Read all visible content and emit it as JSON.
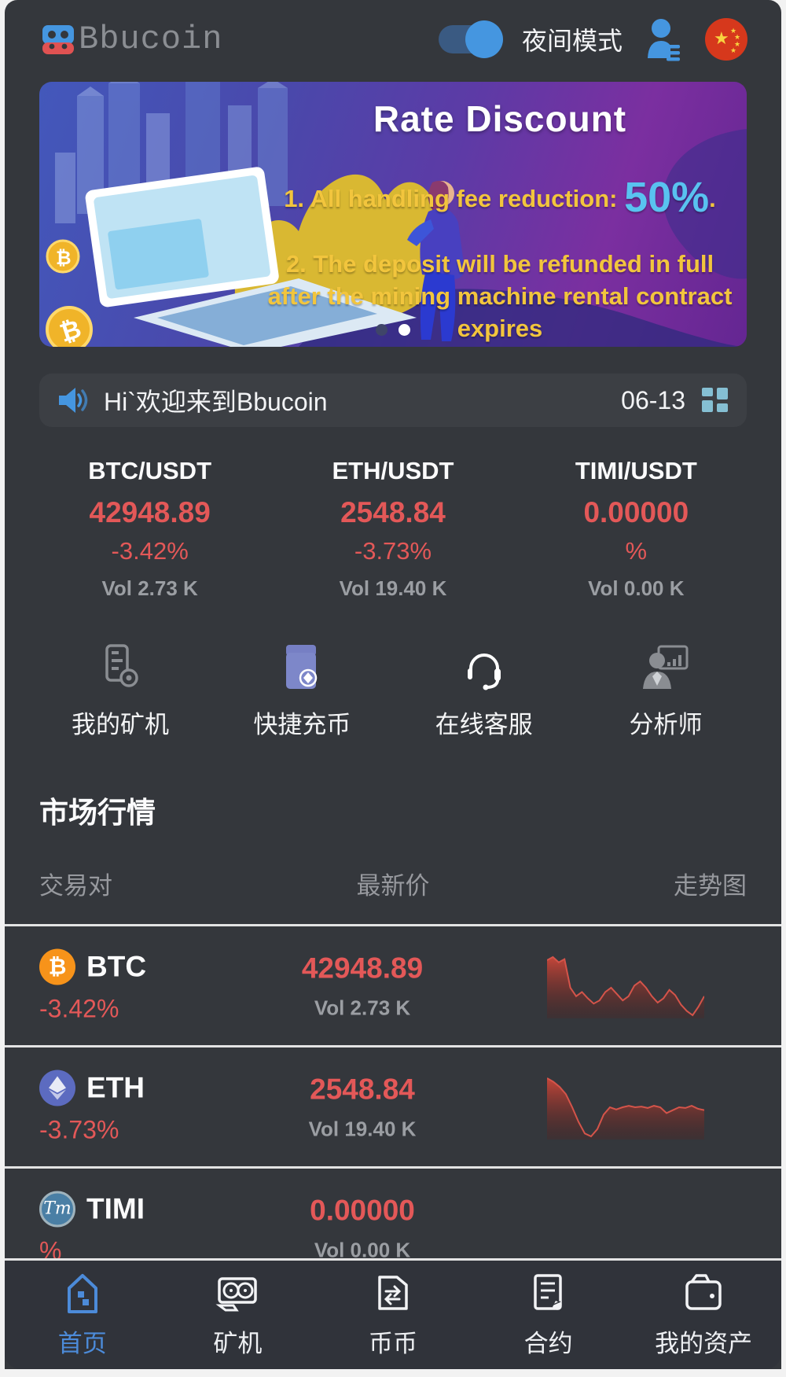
{
  "colors": {
    "accent_blue": "#4c8bd9",
    "toggle_blue": "#4596e0",
    "price_red": "#e35858",
    "muted_gray": "#9b9ea3",
    "banner_yellow": "#f2c53d",
    "banner_highlight_blue": "#59c2f0",
    "page_bg": "#34373c"
  },
  "header": {
    "logo_text": "Bbucoin",
    "night_mode_label": "夜间模式",
    "night_mode_on": true,
    "flag": "china-flag"
  },
  "banner": {
    "title": "Rate Discount",
    "line1_prefix": "1. All handling fee reduction: ",
    "line1_highlight": "50%",
    "line1_suffix": ".",
    "line2": "2. The deposit will be refunded in full after the mining machine rental contract expires",
    "dot_count": 2,
    "active_dot": 2
  },
  "notice": {
    "text": "Hi`欢迎来到Bbucoin",
    "date": "06-13"
  },
  "tickers": [
    {
      "pair": "BTC/USDT",
      "price": "42948.89",
      "change": "-3.42%",
      "vol": "Vol 2.73 K"
    },
    {
      "pair": "ETH/USDT",
      "price": "2548.84",
      "change": "-3.73%",
      "vol": "Vol 19.40 K"
    },
    {
      "pair": "TIMI/USDT",
      "price": "0.00000",
      "change": "%",
      "vol": "Vol 0.00 K"
    }
  ],
  "quick_actions": [
    {
      "label": "我的矿机",
      "icon": "mining-rig-icon"
    },
    {
      "label": "快捷充币",
      "icon": "wallet-deposit-icon"
    },
    {
      "label": "在线客服",
      "icon": "headset-icon"
    },
    {
      "label": "分析师",
      "icon": "analyst-icon"
    }
  ],
  "market": {
    "title": "市场行情",
    "columns": {
      "pair": "交易对",
      "price": "最新价",
      "chart": "走势图"
    },
    "rows": [
      {
        "symbol": "BTC",
        "change": "-3.42%",
        "price": "42948.89",
        "vol": "Vol 2.73 K",
        "coin_icon": "btc-coin-icon"
      },
      {
        "symbol": "ETH",
        "change": "-3.73%",
        "price": "2548.84",
        "vol": "Vol 19.40 K",
        "coin_icon": "eth-coin-icon"
      },
      {
        "symbol": "TIMI",
        "change": "%",
        "price": "0.00000",
        "vol": "Vol 0.00 K",
        "coin_icon": "timi-coin-icon"
      }
    ]
  },
  "chart_data": [
    {
      "type": "area",
      "name": "BTC 24h sparkline",
      "color": "#c9473a",
      "unit": "relative price (0-100, estimated from pixels)",
      "values": [
        96,
        99,
        94,
        97,
        70,
        62,
        66,
        60,
        55,
        58,
        66,
        70,
        64,
        58,
        62,
        72,
        76,
        70,
        62,
        56,
        60,
        68,
        63,
        54,
        48,
        44,
        52,
        62
      ]
    },
    {
      "type": "area",
      "name": "ETH 24h sparkline",
      "color": "#c9473a",
      "unit": "relative price (0-100, estimated from pixels)",
      "values": [
        98,
        93,
        86,
        76,
        58,
        38,
        22,
        18,
        28,
        48,
        58,
        55,
        58,
        60,
        58,
        59,
        57,
        60,
        58,
        50,
        54,
        58,
        57,
        60,
        56,
        54
      ]
    }
  ],
  "tabbar": [
    {
      "label": "首页",
      "icon": "home-icon",
      "active": true
    },
    {
      "label": "矿机",
      "icon": "gpu-icon",
      "active": false
    },
    {
      "label": "币币",
      "icon": "exchange-icon",
      "active": false
    },
    {
      "label": "合约",
      "icon": "contract-icon",
      "active": false
    },
    {
      "label": "我的资产",
      "icon": "wallet-icon",
      "active": false
    }
  ]
}
